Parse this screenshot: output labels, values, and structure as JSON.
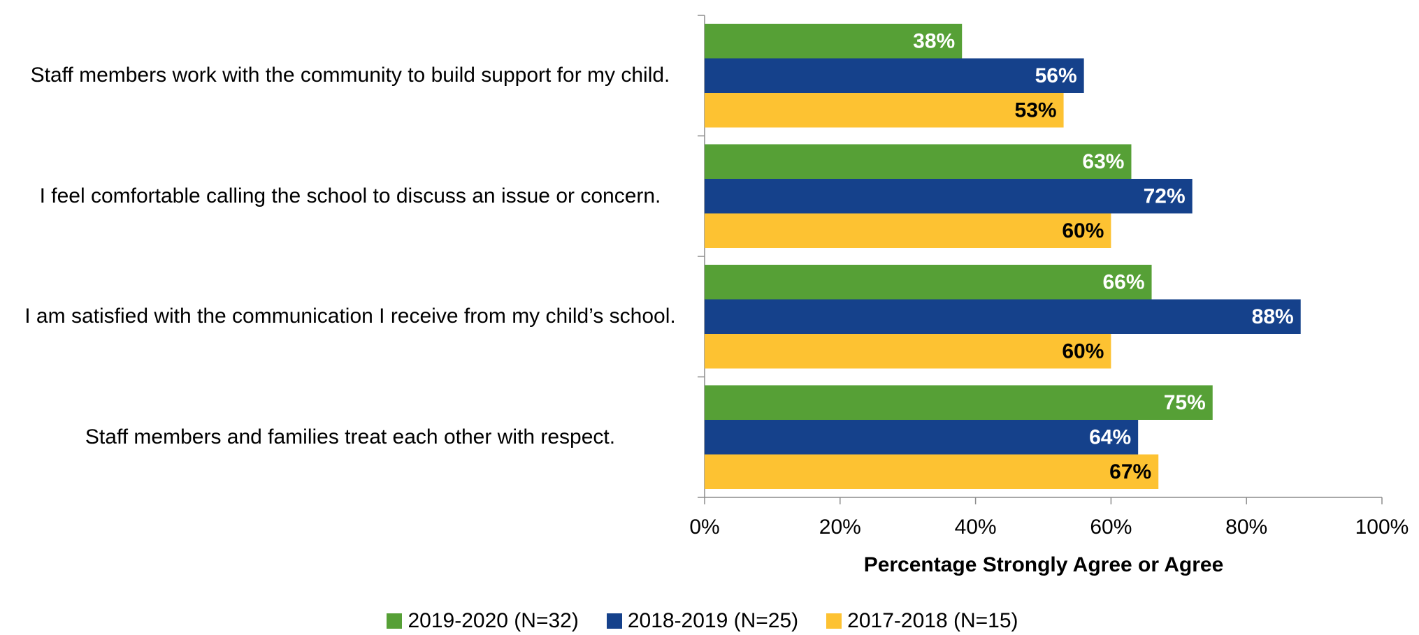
{
  "chart_data": {
    "type": "hbar",
    "x_label": "Percentage Strongly Agree or Agree",
    "categories": [
      "Staff members work with the community to build support for my child.",
      "I feel comfortable calling the school to discuss an issue or concern.",
      "I am satisfied with the communication I receive from my child’s school.",
      "Staff members and families treat each other with respect."
    ],
    "series": [
      {
        "name": "2019-2020 (N=32)",
        "color": "#56a036",
        "label_color": "#ffffff",
        "values": [
          38,
          63,
          66,
          75
        ],
        "value_labels": [
          "38%",
          "63%",
          "66%",
          "75%"
        ]
      },
      {
        "name": "2018-2019 (N=25)",
        "color": "#15418b",
        "label_color": "#ffffff",
        "values": [
          56,
          72,
          88,
          64
        ],
        "value_labels": [
          "56%",
          "72%",
          "88%",
          "64%"
        ]
      },
      {
        "name": "2017-2018 (N=15)",
        "color": "#fdc232",
        "label_color": "#000000",
        "values": [
          53,
          60,
          60,
          67
        ],
        "value_labels": [
          "53%",
          "60%",
          "60%",
          "67%"
        ]
      }
    ],
    "xlim": [
      0,
      100
    ],
    "xticks": [
      {
        "value": 0,
        "label": "0%"
      },
      {
        "value": 20,
        "label": "20%"
      },
      {
        "value": 40,
        "label": "40%"
      },
      {
        "value": 60,
        "label": "60%"
      },
      {
        "value": 80,
        "label": "80%"
      },
      {
        "value": 100,
        "label": "100%"
      }
    ],
    "legend": "bottom"
  }
}
